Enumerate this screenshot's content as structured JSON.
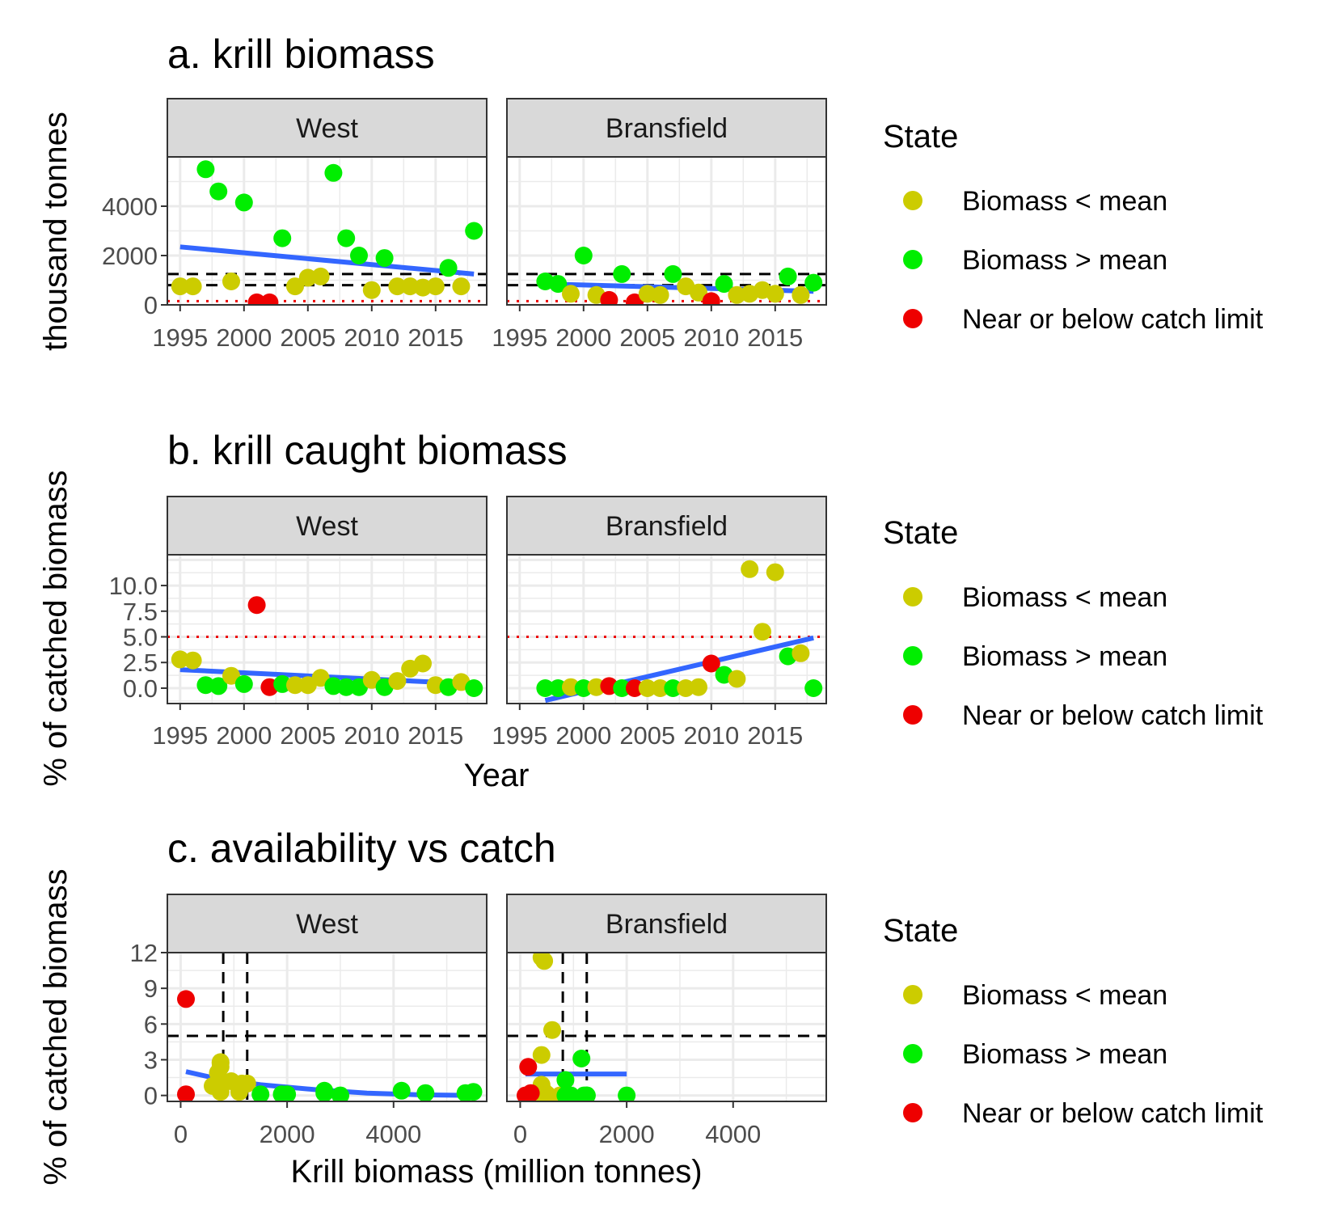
{
  "colors": {
    "below_mean": "#cccc00",
    "above_mean": "#00ee00",
    "catch_limit": "#ee0000",
    "trend": "#3366ff",
    "ref_black": "#000000",
    "ref_red": "#ee0000",
    "strip_bg": "#d9d9d9",
    "grid": "#ebebeb"
  },
  "legend": {
    "title": "State",
    "items": [
      {
        "key": "below",
        "label": "Biomass < mean"
      },
      {
        "key": "above",
        "label": "Biomass > mean"
      },
      {
        "key": "limit",
        "label": "Near or below catch limit"
      }
    ]
  },
  "chart_data": [
    {
      "id": "a",
      "type": "scatter",
      "title": "a. krill biomass",
      "ylabel": "thousand tonnes",
      "xlabel": "",
      "facets": [
        "West",
        "Bransfield"
      ],
      "xlim": [
        1994,
        2019
      ],
      "ylim": [
        0,
        6000
      ],
      "xticks": [
        1995,
        2000,
        2005,
        2010,
        2015
      ],
      "yticks": [
        0,
        2000,
        4000
      ],
      "ytick_labels": [
        "0",
        "2000",
        "4000"
      ],
      "hlines": [
        {
          "y": 1250,
          "style": "dashed",
          "color": "black"
        },
        {
          "y": 800,
          "style": "dashed",
          "color": "black"
        },
        {
          "y": 150,
          "style": "dotted",
          "color": "red"
        }
      ],
      "vlines": [],
      "trend": {
        "West": [
          [
            1995,
            2350
          ],
          [
            2018,
            1250
          ]
        ],
        "Bransfield": [
          [
            1997,
            850
          ],
          [
            2018,
            550
          ]
        ]
      },
      "points": {
        "West": [
          {
            "x": 1995,
            "y": 750,
            "s": "below"
          },
          {
            "x": 1996,
            "y": 750,
            "s": "below"
          },
          {
            "x": 1997,
            "y": 5500,
            "s": "above"
          },
          {
            "x": 1998,
            "y": 4600,
            "s": "above"
          },
          {
            "x": 1999,
            "y": 950,
            "s": "below"
          },
          {
            "x": 2000,
            "y": 4150,
            "s": "above"
          },
          {
            "x": 2001,
            "y": 100,
            "s": "limit"
          },
          {
            "x": 2002,
            "y": 100,
            "s": "limit"
          },
          {
            "x": 2003,
            "y": 2700,
            "s": "above"
          },
          {
            "x": 2004,
            "y": 750,
            "s": "below"
          },
          {
            "x": 2005,
            "y": 1100,
            "s": "below"
          },
          {
            "x": 2006,
            "y": 1150,
            "s": "below"
          },
          {
            "x": 2007,
            "y": 5350,
            "s": "above"
          },
          {
            "x": 2008,
            "y": 2700,
            "s": "above"
          },
          {
            "x": 2009,
            "y": 2000,
            "s": "above"
          },
          {
            "x": 2010,
            "y": 600,
            "s": "below"
          },
          {
            "x": 2011,
            "y": 1900,
            "s": "above"
          },
          {
            "x": 2012,
            "y": 750,
            "s": "below"
          },
          {
            "x": 2013,
            "y": 750,
            "s": "below"
          },
          {
            "x": 2014,
            "y": 700,
            "s": "below"
          },
          {
            "x": 2015,
            "y": 750,
            "s": "below"
          },
          {
            "x": 2016,
            "y": 1500,
            "s": "above"
          },
          {
            "x": 2017,
            "y": 750,
            "s": "below"
          },
          {
            "x": 2018,
            "y": 3000,
            "s": "above"
          }
        ],
        "Bransfield": [
          {
            "x": 1997,
            "y": 950,
            "s": "above"
          },
          {
            "x": 1998,
            "y": 850,
            "s": "above"
          },
          {
            "x": 1999,
            "y": 450,
            "s": "below"
          },
          {
            "x": 2000,
            "y": 2000,
            "s": "above"
          },
          {
            "x": 2001,
            "y": 400,
            "s": "below"
          },
          {
            "x": 2002,
            "y": 200,
            "s": "limit"
          },
          {
            "x": 2003,
            "y": 1250,
            "s": "above"
          },
          {
            "x": 2004,
            "y": 100,
            "s": "limit"
          },
          {
            "x": 2005,
            "y": 450,
            "s": "below"
          },
          {
            "x": 2006,
            "y": 400,
            "s": "below"
          },
          {
            "x": 2007,
            "y": 1250,
            "s": "above"
          },
          {
            "x": 2008,
            "y": 750,
            "s": "below"
          },
          {
            "x": 2009,
            "y": 500,
            "s": "below"
          },
          {
            "x": 2010,
            "y": 150,
            "s": "limit"
          },
          {
            "x": 2011,
            "y": 850,
            "s": "above"
          },
          {
            "x": 2012,
            "y": 400,
            "s": "below"
          },
          {
            "x": 2013,
            "y": 450,
            "s": "below"
          },
          {
            "x": 2014,
            "y": 600,
            "s": "below"
          },
          {
            "x": 2015,
            "y": 450,
            "s": "below"
          },
          {
            "x": 2016,
            "y": 1150,
            "s": "above"
          },
          {
            "x": 2017,
            "y": 400,
            "s": "below"
          },
          {
            "x": 2018,
            "y": 900,
            "s": "above"
          }
        ]
      }
    },
    {
      "id": "b",
      "type": "scatter",
      "title": "b. krill caught biomass",
      "ylabel": "% of catched biomass",
      "xlabel": "Year",
      "facets": [
        "West",
        "Bransfield"
      ],
      "xlim": [
        1994,
        2019
      ],
      "ylim": [
        -1.5,
        13
      ],
      "xticks": [
        1995,
        2000,
        2005,
        2010,
        2015
      ],
      "yticks": [
        0,
        2.5,
        5,
        7.5,
        10
      ],
      "ytick_labels": [
        "0.0",
        "2.5",
        "5.0",
        "7.5",
        "10.0"
      ],
      "hlines": [
        {
          "y": 5,
          "style": "dotted",
          "color": "red"
        }
      ],
      "vlines": [],
      "trend": {
        "West": [
          [
            1995,
            1.8
          ],
          [
            2018,
            0.4
          ]
        ],
        "Bransfield": [
          [
            1997,
            -1.2
          ],
          [
            2018,
            4.9
          ]
        ]
      },
      "points": {
        "West": [
          {
            "x": 1995,
            "y": 2.8,
            "s": "below"
          },
          {
            "x": 1996,
            "y": 2.7,
            "s": "below"
          },
          {
            "x": 1997,
            "y": 0.3,
            "s": "above"
          },
          {
            "x": 1998,
            "y": 0.2,
            "s": "above"
          },
          {
            "x": 1999,
            "y": 1.2,
            "s": "below"
          },
          {
            "x": 2000,
            "y": 0.4,
            "s": "above"
          },
          {
            "x": 2001,
            "y": 8.1,
            "s": "limit"
          },
          {
            "x": 2002,
            "y": 0.1,
            "s": "limit"
          },
          {
            "x": 2003,
            "y": 0.4,
            "s": "above"
          },
          {
            "x": 2004,
            "y": 0.3,
            "s": "below"
          },
          {
            "x": 2005,
            "y": 0.3,
            "s": "below"
          },
          {
            "x": 2006,
            "y": 1.0,
            "s": "below"
          },
          {
            "x": 2007,
            "y": 0.2,
            "s": "above"
          },
          {
            "x": 2008,
            "y": 0.1,
            "s": "above"
          },
          {
            "x": 2009,
            "y": 0.1,
            "s": "above"
          },
          {
            "x": 2010,
            "y": 0.8,
            "s": "below"
          },
          {
            "x": 2011,
            "y": 0.1,
            "s": "above"
          },
          {
            "x": 2012,
            "y": 0.7,
            "s": "below"
          },
          {
            "x": 2013,
            "y": 1.9,
            "s": "below"
          },
          {
            "x": 2014,
            "y": 2.4,
            "s": "below"
          },
          {
            "x": 2015,
            "y": 0.3,
            "s": "below"
          },
          {
            "x": 2016,
            "y": 0.1,
            "s": "above"
          },
          {
            "x": 2017,
            "y": 0.6,
            "s": "below"
          },
          {
            "x": 2018,
            "y": 0.0,
            "s": "above"
          }
        ],
        "Bransfield": [
          {
            "x": 1997,
            "y": 0.0,
            "s": "above"
          },
          {
            "x": 1998,
            "y": 0.0,
            "s": "above"
          },
          {
            "x": 1999,
            "y": 0.1,
            "s": "below"
          },
          {
            "x": 2000,
            "y": 0.0,
            "s": "above"
          },
          {
            "x": 2001,
            "y": 0.1,
            "s": "below"
          },
          {
            "x": 2002,
            "y": 0.2,
            "s": "limit"
          },
          {
            "x": 2003,
            "y": 0.0,
            "s": "above"
          },
          {
            "x": 2004,
            "y": 0.0,
            "s": "limit"
          },
          {
            "x": 2005,
            "y": 0.0,
            "s": "below"
          },
          {
            "x": 2006,
            "y": 0.0,
            "s": "below"
          },
          {
            "x": 2007,
            "y": 0.0,
            "s": "above"
          },
          {
            "x": 2008,
            "y": 0.0,
            "s": "below"
          },
          {
            "x": 2009,
            "y": 0.1,
            "s": "below"
          },
          {
            "x": 2010,
            "y": 2.4,
            "s": "limit"
          },
          {
            "x": 2011,
            "y": 1.3,
            "s": "above"
          },
          {
            "x": 2012,
            "y": 0.9,
            "s": "below"
          },
          {
            "x": 2013,
            "y": 11.6,
            "s": "below"
          },
          {
            "x": 2014,
            "y": 5.5,
            "s": "below"
          },
          {
            "x": 2015,
            "y": 11.3,
            "s": "below"
          },
          {
            "x": 2016,
            "y": 3.1,
            "s": "above"
          },
          {
            "x": 2017,
            "y": 3.4,
            "s": "below"
          },
          {
            "x": 2018,
            "y": 0.0,
            "s": "above"
          }
        ]
      }
    },
    {
      "id": "c",
      "type": "scatter",
      "title": "c. availability vs catch",
      "ylabel": "% of catched biomass",
      "xlabel": "Krill biomass (million tonnes)",
      "facets": [
        "West",
        "Bransfield"
      ],
      "xlim": [
        -250,
        5750
      ],
      "ylim": [
        -0.5,
        12
      ],
      "xticks": [
        0,
        2000,
        4000
      ],
      "yticks": [
        0,
        3,
        6,
        9,
        12
      ],
      "ytick_labels": [
        "0",
        "3",
        "6",
        "9",
        "12"
      ],
      "hlines": [
        {
          "y": 5,
          "style": "dashed",
          "color": "black"
        }
      ],
      "vlines": [
        {
          "x": 800,
          "style": "dashed",
          "color": "black"
        },
        {
          "x": 1250,
          "style": "dashed",
          "color": "black"
        }
      ],
      "trend": {
        "West": [
          [
            100,
            2.0
          ],
          [
            700,
            1.4
          ],
          [
            1500,
            0.9
          ],
          [
            2500,
            0.5
          ],
          [
            3500,
            0.2
          ],
          [
            4500,
            0.05
          ],
          [
            5500,
            0.0
          ]
        ],
        "Bransfield": [
          [
            100,
            1.8
          ],
          [
            2000,
            1.8
          ]
        ]
      },
      "points": {
        "West": [
          {
            "x": 100,
            "y": 8.1,
            "s": "limit"
          },
          {
            "x": 100,
            "y": 0.1,
            "s": "limit"
          },
          {
            "x": 750,
            "y": 2.8,
            "s": "below"
          },
          {
            "x": 750,
            "y": 2.7,
            "s": "below"
          },
          {
            "x": 950,
            "y": 1.2,
            "s": "below"
          },
          {
            "x": 1100,
            "y": 0.3,
            "s": "below"
          },
          {
            "x": 1150,
            "y": 1.0,
            "s": "below"
          },
          {
            "x": 600,
            "y": 0.8,
            "s": "below"
          },
          {
            "x": 750,
            "y": 0.7,
            "s": "below"
          },
          {
            "x": 700,
            "y": 1.9,
            "s": "below"
          },
          {
            "x": 750,
            "y": 2.4,
            "s": "below"
          },
          {
            "x": 750,
            "y": 0.3,
            "s": "below"
          },
          {
            "x": 750,
            "y": 0.6,
            "s": "below"
          },
          {
            "x": 1250,
            "y": 1.0,
            "s": "below"
          },
          {
            "x": 1500,
            "y": 0.1,
            "s": "above"
          },
          {
            "x": 1900,
            "y": 0.1,
            "s": "above"
          },
          {
            "x": 2000,
            "y": 0.1,
            "s": "above"
          },
          {
            "x": 2700,
            "y": 0.4,
            "s": "above"
          },
          {
            "x": 2700,
            "y": 0.2,
            "s": "above"
          },
          {
            "x": 3000,
            "y": 0.0,
            "s": "above"
          },
          {
            "x": 4150,
            "y": 0.4,
            "s": "above"
          },
          {
            "x": 4600,
            "y": 0.2,
            "s": "above"
          },
          {
            "x": 5350,
            "y": 0.2,
            "s": "above"
          },
          {
            "x": 5500,
            "y": 0.3,
            "s": "above"
          }
        ],
        "Bransfield": [
          {
            "x": 400,
            "y": 11.6,
            "s": "below"
          },
          {
            "x": 450,
            "y": 11.3,
            "s": "below"
          },
          {
            "x": 600,
            "y": 5.5,
            "s": "below"
          },
          {
            "x": 400,
            "y": 3.4,
            "s": "below"
          },
          {
            "x": 400,
            "y": 0.9,
            "s": "below"
          },
          {
            "x": 450,
            "y": 0.3,
            "s": "below"
          },
          {
            "x": 500,
            "y": 0.1,
            "s": "below"
          },
          {
            "x": 750,
            "y": 0.0,
            "s": "below"
          },
          {
            "x": 400,
            "y": 0.0,
            "s": "below"
          },
          {
            "x": 450,
            "y": 0.0,
            "s": "below"
          },
          {
            "x": 150,
            "y": 2.4,
            "s": "limit"
          },
          {
            "x": 200,
            "y": 0.2,
            "s": "limit"
          },
          {
            "x": 100,
            "y": 0.0,
            "s": "limit"
          },
          {
            "x": 1150,
            "y": 3.1,
            "s": "above"
          },
          {
            "x": 850,
            "y": 1.3,
            "s": "above"
          },
          {
            "x": 950,
            "y": 0.0,
            "s": "above"
          },
          {
            "x": 850,
            "y": 0.0,
            "s": "above"
          },
          {
            "x": 1250,
            "y": 0.0,
            "s": "above"
          },
          {
            "x": 1250,
            "y": 0.0,
            "s": "above"
          },
          {
            "x": 2000,
            "y": 0.0,
            "s": "above"
          },
          {
            "x": 900,
            "y": 0.0,
            "s": "above"
          },
          {
            "x": 1200,
            "y": 0.0,
            "s": "above"
          }
        ]
      }
    }
  ]
}
